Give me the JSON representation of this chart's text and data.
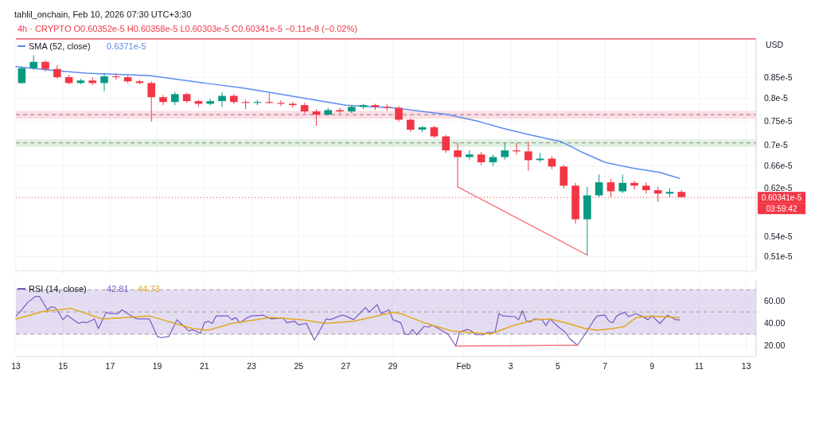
{
  "chart_data": [
    {
      "type": "candlestick",
      "title": "tahlil_onchain, Feb 10, 2026 07:30 UTC+3:30",
      "subtitle": "4h · CRYPTO O0.60352e-5 H0.60358e-5 L0.60303e-5 C0.60341e-5 −0.11e-8 (−0.02%)",
      "ylabel": "USD",
      "x": [
        "2026-01-13T06:00",
        "2026-01-13T18:00",
        "2026-01-14T06:00",
        "2026-01-14T18:00",
        "2026-01-15T06:00",
        "2026-01-15T18:00",
        "2026-01-16T06:00",
        "2026-01-16T18:00",
        "2026-01-17T06:00",
        "2026-01-17T18:00",
        "2026-01-18T06:00",
        "2026-01-18T18:00",
        "2026-01-19T06:00",
        "2026-01-19T18:00",
        "2026-01-20T06:00",
        "2026-01-20T18:00",
        "2026-01-21T06:00",
        "2026-01-21T18:00",
        "2026-01-22T06:00",
        "2026-01-22T18:00",
        "2026-01-23T06:00",
        "2026-01-23T18:00",
        "2026-01-24T06:00",
        "2026-01-24T18:00",
        "2026-01-25T06:00",
        "2026-01-25T18:00",
        "2026-01-26T06:00",
        "2026-01-26T18:00",
        "2026-01-27T06:00",
        "2026-01-27T18:00",
        "2026-01-28T06:00",
        "2026-01-28T18:00",
        "2026-01-29T06:00",
        "2026-01-29T18:00",
        "2026-01-30T06:00",
        "2026-01-30T18:00",
        "2026-01-31T06:00",
        "2026-01-31T18:00",
        "2026-02-01T06:00",
        "2026-02-01T18:00",
        "2026-02-02T06:00",
        "2026-02-02T18:00",
        "2026-02-03T06:00",
        "2026-02-03T18:00",
        "2026-02-04T06:00",
        "2026-02-04T18:00",
        "2026-02-05T06:00",
        "2026-02-05T18:00",
        "2026-02-06T06:00",
        "2026-02-06T18:00",
        "2026-02-07T06:00",
        "2026-02-07T18:00",
        "2026-02-08T06:00",
        "2026-02-08T18:00",
        "2026-02-09T06:00",
        "2026-02-09T18:00",
        "2026-02-10T06:00"
      ],
      "ohlc": [
        [
          8.36e-06,
          8.76e-06,
          8.34e-06,
          8.72e-06
        ],
        [
          8.72e-06,
          9.05e-06,
          8.68e-06,
          8.88e-06
        ],
        [
          8.88e-06,
          8.92e-06,
          8.64e-06,
          8.7e-06
        ],
        [
          8.7e-06,
          8.8e-06,
          8.46e-06,
          8.5e-06
        ],
        [
          8.5e-06,
          8.56e-06,
          8.33e-06,
          8.36e-06
        ],
        [
          8.36e-06,
          8.46e-06,
          8.33e-06,
          8.42e-06
        ],
        [
          8.42e-06,
          8.5e-06,
          8.31e-06,
          8.36e-06
        ],
        [
          8.36e-06,
          8.6e-06,
          8.17e-06,
          8.52e-06
        ],
        [
          8.52e-06,
          8.6e-06,
          8.44e-06,
          8.5e-06
        ],
        [
          8.5e-06,
          8.54e-06,
          8.36e-06,
          8.4e-06
        ],
        [
          8.4e-06,
          8.44e-06,
          8.33e-06,
          8.36e-06
        ],
        [
          8.36e-06,
          8.4e-06,
          7.49e-06,
          8.03e-06
        ],
        [
          8.03e-06,
          8.08e-06,
          7.85e-06,
          7.92e-06
        ],
        [
          7.92e-06,
          8.15e-06,
          7.85e-06,
          8.1e-06
        ],
        [
          8.1e-06,
          8.13e-06,
          7.9e-06,
          7.94e-06
        ],
        [
          7.94e-06,
          7.97e-06,
          7.81e-06,
          7.88e-06
        ],
        [
          7.88e-06,
          7.99e-06,
          7.85e-06,
          7.94e-06
        ],
        [
          7.94e-06,
          8.15e-06,
          7.81e-06,
          8.06e-06
        ],
        [
          8.06e-06,
          8.1e-06,
          7.88e-06,
          7.92e-06
        ],
        [
          7.92e-06,
          7.97e-06,
          7.76e-06,
          7.9e-06
        ],
        [
          7.9e-06,
          7.97e-06,
          7.85e-06,
          7.92e-06
        ],
        [
          7.92e-06,
          8.12e-06,
          7.88e-06,
          7.9e-06
        ],
        [
          7.9e-06,
          7.96e-06,
          7.83e-06,
          7.88e-06
        ],
        [
          7.88e-06,
          7.92e-06,
          7.79e-06,
          7.85e-06
        ],
        [
          7.85e-06,
          7.9e-06,
          7.67e-06,
          7.71e-06
        ],
        [
          7.71e-06,
          7.76e-06,
          7.4e-06,
          7.64e-06
        ],
        [
          7.64e-06,
          7.79e-06,
          7.62e-06,
          7.74e-06
        ],
        [
          7.74e-06,
          7.79e-06,
          7.67e-06,
          7.71e-06
        ],
        [
          7.71e-06,
          7.85e-06,
          7.67e-06,
          7.81e-06
        ],
        [
          7.81e-06,
          7.88e-06,
          7.76e-06,
          7.85e-06
        ],
        [
          7.85e-06,
          7.88e-06,
          7.74e-06,
          7.81e-06
        ],
        [
          7.81e-06,
          7.87e-06,
          7.72e-06,
          7.79e-06
        ],
        [
          7.79e-06,
          7.83e-06,
          7.49e-06,
          7.53e-06
        ],
        [
          7.53e-06,
          7.56e-06,
          7.27e-06,
          7.32e-06
        ],
        [
          7.32e-06,
          7.4e-06,
          7.27e-06,
          7.37e-06
        ],
        [
          7.37e-06,
          7.4e-06,
          7.15e-06,
          7.18e-06
        ],
        [
          7.18e-06,
          7.21e-06,
          6.85e-06,
          6.9e-06
        ],
        [
          6.9e-06,
          7.05e-06,
          6.22e-06,
          6.77e-06
        ],
        [
          6.77e-06,
          6.9e-06,
          6.72e-06,
          6.82e-06
        ],
        [
          6.82e-06,
          6.87e-06,
          6.62e-06,
          6.67e-06
        ],
        [
          6.67e-06,
          6.82e-06,
          6.6e-06,
          6.77e-06
        ],
        [
          6.77e-06,
          7.05e-06,
          6.72e-06,
          6.9e-06
        ],
        [
          6.9e-06,
          7.05e-06,
          6.82e-06,
          6.88e-06
        ],
        [
          6.88e-06,
          7.07e-06,
          6.51e-06,
          6.71e-06
        ],
        [
          6.71e-06,
          6.85e-06,
          6.67e-06,
          6.74e-06
        ],
        [
          6.74e-06,
          6.79e-06,
          6.54e-06,
          6.59e-06
        ],
        [
          6.59e-06,
          6.62e-06,
          6.19e-06,
          6.24e-06
        ],
        [
          6.24e-06,
          6.29e-06,
          5.6e-06,
          5.67e-06
        ],
        [
          5.67e-06,
          6.22e-06,
          5.12e-06,
          6.07e-06
        ],
        [
          6.07e-06,
          6.44e-06,
          6.04e-06,
          6.3e-06
        ],
        [
          6.3e-06,
          6.36e-06,
          6.04e-06,
          6.14e-06
        ],
        [
          6.14e-06,
          6.44e-06,
          6.11e-06,
          6.29e-06
        ],
        [
          6.29e-06,
          6.33e-06,
          6.17e-06,
          6.24e-06
        ],
        [
          6.24e-06,
          6.3e-06,
          6.1e-06,
          6.16e-06
        ],
        [
          6.16e-06,
          6.22e-06,
          5.96e-06,
          6.1e-06
        ],
        [
          6.1e-06,
          6.19e-06,
          6.04e-06,
          6.13e-06
        ],
        [
          6.13e-06,
          6.16e-06,
          6.03e-06,
          6.04e-06
        ]
      ],
      "colors": [
        "#089981",
        "#089981",
        "#f23645",
        "#f23645",
        "#f23645",
        "#089981",
        "#f23645",
        "#089981",
        "#f23645",
        "#f23645",
        "#f23645",
        "#f23645",
        "#f23645",
        "#089981",
        "#f23645",
        "#f23645",
        "#089981",
        "#089981",
        "#f23645",
        "#f23645",
        "#089981",
        "#f23645",
        "#f23645",
        "#f23645",
        "#f23645",
        "#f23645",
        "#089981",
        "#f23645",
        "#089981",
        "#089981",
        "#f23645",
        "#f23645",
        "#f23645",
        "#f23645",
        "#089981",
        "#f23645",
        "#f23645",
        "#f23645",
        "#089981",
        "#f23645",
        "#089981",
        "#089981",
        "#f23645",
        "#f23645",
        "#089981",
        "#f23645",
        "#f23645",
        "#f23645",
        "#089981",
        "#089981",
        "#f23645",
        "#089981",
        "#f23645",
        "#f23645",
        "#f23645",
        "#089981",
        "#f23645"
      ],
      "series": [
        {
          "type": "line",
          "name": "SMA (52, close)",
          "color": "#5b8def",
          "x": [
            "2026-01-13T00:00",
            "2026-01-14T16:00",
            "2026-01-16T00:00",
            "2026-01-18T16:00",
            "2026-01-21T00:00",
            "2026-01-22T16:00",
            "2026-01-24T00:00",
            "2026-01-27T00:00",
            "2026-01-29T00:00",
            "2026-01-31T08:00",
            "2026-02-01T16:00",
            "2026-02-02T16:00",
            "2026-02-03T16:00",
            "2026-02-05T04:00",
            "2026-02-06T00:00",
            "2026-02-07T00:00",
            "2026-02-08T04:00",
            "2026-02-09T08:00",
            "2026-02-10T04:00"
          ],
          "values": [
            8.76e-06,
            8.66e-06,
            8.6e-06,
            8.54e-06,
            8.36e-06,
            8.24e-06,
            8.12e-06,
            7.85e-06,
            7.79e-06,
            7.64e-06,
            7.49e-06,
            7.35e-06,
            7.23e-06,
            7.07e-06,
            6.87e-06,
            6.67e-06,
            6.56e-06,
            6.48e-06,
            6.371e-06
          ]
        },
        {
          "type": "line",
          "color": "#f77c80",
          "x": [
            "2026-01-31T18:00",
            "2026-02-06T06:00"
          ],
          "values": [
            6.22e-06,
            5.12e-06
          ]
        }
      ],
      "log": true,
      "xlim": [
        "2026-01-13T00:00",
        "2026-02-13T10:00"
      ],
      "xticks": [
        {
          "value": "2026-01-13T00:00",
          "label": null
        },
        {
          "value": "2026-01-15T00:00",
          "label": null
        },
        {
          "value": "2026-01-17T00:00",
          "label": null
        },
        {
          "value": "2026-01-19T00:00",
          "label": null
        },
        {
          "value": "2026-01-21T00:00",
          "label": null
        },
        {
          "value": "2026-01-23T00:00",
          "label": null
        },
        {
          "value": "2026-01-25T00:00",
          "label": null
        },
        {
          "value": "2026-01-27T00:00",
          "label": null
        },
        {
          "value": "2026-01-29T00:00",
          "label": null
        },
        {
          "value": "2026-02-01T00:00",
          "label": null
        },
        {
          "value": "2026-02-03T00:00",
          "label": null
        },
        {
          "value": "2026-02-05T00:00",
          "label": null
        },
        {
          "value": "2026-02-07T00:00",
          "label": null
        },
        {
          "value": "2026-02-09T00:00",
          "label": null
        },
        {
          "value": "2026-02-11T00:00",
          "label": null
        },
        {
          "value": "2026-02-13T00:00",
          "label": null
        }
      ],
      "ylim": [
        4.9e-06,
        9.5e-06
      ],
      "yticks": [
        {
          "value": 8.5e-06,
          "label": "0.85e-5"
        },
        {
          "value": 8e-06,
          "label": "0.8e-5"
        },
        {
          "value": 7.5e-06,
          "label": "0.75e-5"
        },
        {
          "value": 7e-06,
          "label": "0.7e-5"
        },
        {
          "value": 6.6e-06,
          "label": "0.66e-5"
        },
        {
          "value": 6.2e-06,
          "label": "0.62e-5"
        },
        {
          "value": 5.4e-06,
          "label": "0.54e-5"
        },
        {
          "value": 5.1e-06,
          "label": "0.51e-5"
        }
      ],
      "grid": true,
      "tick_labels": "y",
      "legend": "top left",
      "bands": [
        {
          "axis": "y",
          "from": 7.55e-06,
          "to": 7.72e-06,
          "color": "#f7a1aa"
        },
        {
          "axis": "y",
          "from": 6.97e-06,
          "to": 7.12e-06,
          "color": "#a5d6a7"
        }
      ],
      "ref_lines": [
        {
          "axis": "y",
          "value": 9.48e-06,
          "color": "#f23645",
          "line_style": "solid"
        },
        {
          "axis": "y",
          "value": 7.64e-06,
          "color": "#8e6fb5",
          "line_style": "dashed"
        },
        {
          "axis": "y",
          "value": 7.05e-06,
          "color": "#888888",
          "line_style": "dashed"
        },
        {
          "axis": "y",
          "value": 6.0341e-06,
          "label": "0.60341e-5",
          "color": "#f23645",
          "line_style": "dotted"
        }
      ],
      "annotations": [
        "0.6371e-5",
        "03:59:42"
      ]
    },
    {
      "type": "line",
      "series": [
        {
          "name": "RSI (14, close)",
          "color": "#7e57c2",
          "x": [
            "2026-01-13T00:00",
            "2026-01-13T04:00",
            "2026-01-13T12:00",
            "2026-01-13T20:00",
            "2026-01-14T00:00",
            "2026-01-14T08:00",
            "2026-01-14T12:00",
            "2026-01-14T16:00",
            "2026-01-15T00:00",
            "2026-01-15T04:00",
            "2026-01-15T16:00",
            "2026-01-15T20:00",
            "2026-01-16T00:00",
            "2026-01-16T08:00",
            "2026-01-16T12:00",
            "2026-01-16T20:00",
            "2026-01-17T00:00",
            "2026-01-17T08:00",
            "2026-01-17T12:00",
            "2026-01-18T00:00",
            "2026-01-18T04:00",
            "2026-01-18T16:00",
            "2026-01-19T00:00",
            "2026-01-19T04:00",
            "2026-01-19T12:00",
            "2026-01-19T20:00",
            "2026-01-20T00:00",
            "2026-01-20T08:00",
            "2026-01-20T12:00",
            "2026-01-20T20:00",
            "2026-01-21T00:00",
            "2026-01-21T04:00",
            "2026-01-21T08:00",
            "2026-01-21T12:00",
            "2026-01-22T00:00",
            "2026-01-22T04:00",
            "2026-01-22T08:00",
            "2026-01-22T12:00",
            "2026-01-22T20:00",
            "2026-01-23T00:00",
            "2026-01-23T12:00",
            "2026-01-23T20:00",
            "2026-01-24T08:00",
            "2026-01-24T12:00",
            "2026-01-24T20:00",
            "2026-01-25T00:00",
            "2026-01-25T08:00",
            "2026-01-25T16:00",
            "2026-01-26T04:00",
            "2026-01-26T08:00",
            "2026-01-26T20:00",
            "2026-01-27T00:00",
            "2026-01-27T08:00",
            "2026-01-27T20:00",
            "2026-01-28T00:00",
            "2026-01-28T08:00",
            "2026-01-28T12:00",
            "2026-01-28T20:00",
            "2026-01-29T00:00",
            "2026-01-29T08:00",
            "2026-01-29T12:00",
            "2026-01-29T16:00",
            "2026-01-29T20:00",
            "2026-01-30T00:00",
            "2026-01-30T08:00",
            "2026-01-30T12:00",
            "2026-01-30T16:00",
            "2026-01-31T08:00",
            "2026-01-31T16:00",
            "2026-01-31T20:00",
            "2026-02-01T04:00",
            "2026-02-01T08:00",
            "2026-02-01T12:00",
            "2026-02-01T20:00",
            "2026-02-02T00:00",
            "2026-02-02T08:00",
            "2026-02-02T12:00",
            "2026-02-02T16:00",
            "2026-02-03T04:00",
            "2026-02-03T08:00",
            "2026-02-03T12:00",
            "2026-02-03T16:00",
            "2026-02-03T20:00",
            "2026-02-04T00:00",
            "2026-02-04T08:00",
            "2026-02-04T12:00",
            "2026-02-04T16:00",
            "2026-02-05T00:00",
            "2026-02-05T08:00",
            "2026-02-05T12:00",
            "2026-02-05T20:00",
            "2026-02-06T04:00",
            "2026-02-06T12:00",
            "2026-02-06T16:00",
            "2026-02-07T00:00",
            "2026-02-07T04:00",
            "2026-02-07T08:00",
            "2026-02-07T12:00",
            "2026-02-07T20:00",
            "2026-02-08T00:00",
            "2026-02-08T08:00",
            "2026-02-08T16:00",
            "2026-02-08T20:00",
            "2026-02-09T00:00",
            "2026-02-09T08:00",
            "2026-02-09T16:00",
            "2026-02-10T00:00",
            "2026-02-10T04:00"
          ],
          "values": [
            46.4,
            49.8,
            58.6,
            64,
            64,
            51.9,
            54.6,
            54,
            43,
            47,
            39.7,
            41,
            40.3,
            43.7,
            35,
            49.8,
            48.5,
            48.5,
            51.9,
            45,
            43.7,
            43.7,
            28,
            26.8,
            28,
            43,
            39.7,
            33,
            34,
            30.8,
            40.3,
            41.7,
            39.7,
            46.4,
            46.4,
            43,
            45,
            40.3,
            45,
            46.4,
            47.1,
            43.7,
            44.4,
            40.3,
            41.7,
            38.3,
            39.7,
            24.7,
            43.7,
            43,
            47.1,
            46.4,
            43,
            53.9,
            49.8,
            56.6,
            48.5,
            51.9,
            43,
            40.3,
            30.2,
            29.5,
            34.2,
            29.5,
            37,
            36.3,
            38.3,
            30.2,
            19.3,
            32.2,
            34.2,
            32.9,
            29.5,
            29.5,
            31.5,
            31.5,
            48.5,
            46.4,
            45.8,
            43,
            51.2,
            41.7,
            41,
            43.7,
            43,
            37.6,
            43.7,
            37,
            31.5,
            26.1,
            20,
            30.2,
            41.7,
            46.4,
            47.1,
            41.7,
            40.3,
            46.4,
            49.8,
            45.8,
            48.5,
            45,
            43,
            46.4,
            39.7,
            47.1,
            43,
            42.8
          ]
        },
        {
          "color": "#e0a820",
          "x": [
            "2026-01-13T00:00",
            "2026-01-14T04:00",
            "2026-01-15T08:00",
            "2026-01-16T00:00",
            "2026-01-16T16:00",
            "2026-01-18T16:00",
            "2026-01-20T12:00",
            "2026-01-21T04:00",
            "2026-01-22T04:00",
            "2026-01-23T20:00",
            "2026-01-25T04:00",
            "2026-01-26T04:00",
            "2026-01-27T08:00",
            "2026-01-28T08:00",
            "2026-01-29T00:00",
            "2026-01-29T08:00",
            "2026-01-30T08:00",
            "2026-01-31T12:00",
            "2026-02-01T08:00",
            "2026-02-02T04:00",
            "2026-02-03T00:00",
            "2026-02-04T00:00",
            "2026-02-04T16:00",
            "2026-02-05T08:00",
            "2026-02-06T04:00",
            "2026-02-06T16:00",
            "2026-02-07T08:00",
            "2026-02-07T20:00",
            "2026-02-08T08:00",
            "2026-02-09T00:00",
            "2026-02-10T00:00",
            "2026-02-10T04:00"
          ],
          "values": [
            43.7,
            50.5,
            53.2,
            48.5,
            43.7,
            46.4,
            35,
            33.6,
            39.7,
            45,
            43,
            39.7,
            41.7,
            46.4,
            49.8,
            48.5,
            40.3,
            32.9,
            31.5,
            30.2,
            37,
            43,
            43.7,
            40.3,
            35,
            33.6,
            35,
            37,
            45,
            46.4,
            45,
            44.7
          ]
        },
        {
          "color": "#f77c80",
          "x": [
            "2026-01-31T16:00",
            "2026-02-05T20:00"
          ],
          "values": [
            19.3,
            20
          ]
        }
      ],
      "xlim": [
        "2026-01-13T00:00",
        "2026-02-13T10:00"
      ],
      "xticks": [
        {
          "value": "2026-01-13T00:00",
          "label": "13"
        },
        {
          "value": "2026-01-15T00:00",
          "label": "15"
        },
        {
          "value": "2026-01-17T00:00",
          "label": "17"
        },
        {
          "value": "2026-01-19T00:00",
          "label": "19"
        },
        {
          "value": "2026-01-21T00:00",
          "label": "21"
        },
        {
          "value": "2026-01-23T00:00",
          "label": "23"
        },
        {
          "value": "2026-01-25T00:00",
          "label": "25"
        },
        {
          "value": "2026-01-27T00:00",
          "label": "27"
        },
        {
          "value": "2026-01-29T00:00",
          "label": "29"
        },
        {
          "value": "2026-02-01T00:00",
          "label": "Feb"
        },
        {
          "value": "2026-02-03T00:00",
          "label": "3"
        },
        {
          "value": "2026-02-05T00:00",
          "label": "5"
        },
        {
          "value": "2026-02-07T00:00",
          "label": "7"
        },
        {
          "value": "2026-02-09T00:00",
          "label": "9"
        },
        {
          "value": "2026-02-11T00:00",
          "label": "11"
        },
        {
          "value": "2026-02-13T00:00",
          "label": "13"
        }
      ],
      "ylim": [
        10,
        78
      ],
      "yticks": [
        {
          "value": 60,
          "label": "60.00"
        },
        {
          "value": 40,
          "label": "40.00"
        },
        {
          "value": 20,
          "label": "20.00"
        }
      ],
      "grid": true,
      "legend": "top left",
      "bands": [
        {
          "axis": "y",
          "from": 30,
          "to": 70,
          "color": "#b39ddb"
        }
      ],
      "ref_lines": [
        {
          "axis": "y",
          "value": 70,
          "color": "#9e9e9e",
          "line_style": "dashed"
        },
        {
          "axis": "y",
          "value": 50,
          "color": "#9e9e9e",
          "line_style": "dashed"
        },
        {
          "axis": "y",
          "value": 30,
          "color": "#9e9e9e",
          "line_style": "dashed"
        }
      ],
      "annotations": [
        "42.81",
        "44.73"
      ]
    }
  ]
}
